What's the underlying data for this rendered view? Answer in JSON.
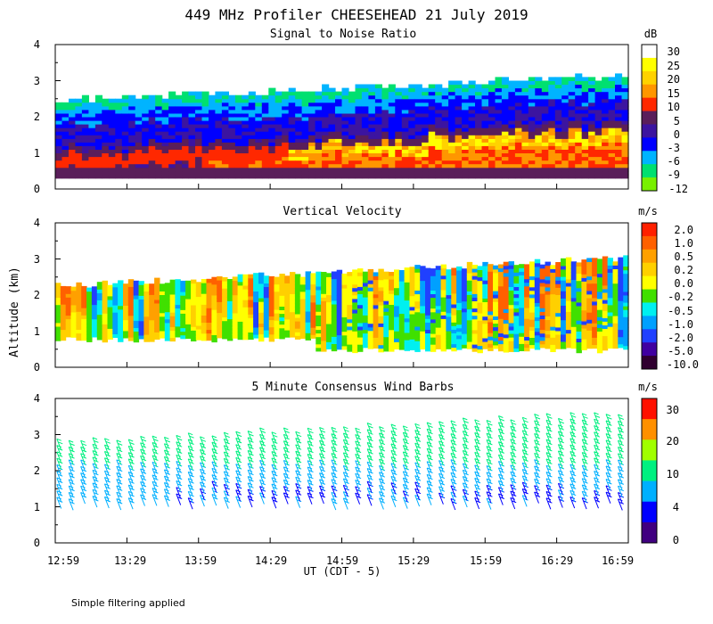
{
  "chart_data": {
    "type": "heatmap",
    "title": "449 MHz Profiler CHEESEHEAD 21 July 2019",
    "ylabel": "Altitude (km)",
    "xlabel": "UT  (CDT - 5)",
    "x_ticks": [
      "12:59",
      "13:29",
      "13:59",
      "14:29",
      "14:59",
      "15:29",
      "15:59",
      "16:29",
      "16:59"
    ],
    "xlim_hours": [
      12.9833,
      16.9833
    ],
    "ylim_km": [
      0,
      4
    ],
    "y_ticks": [
      "0",
      "1",
      "2",
      "3",
      "4"
    ],
    "footnote": "Simple filtering applied",
    "panels": [
      {
        "title": "Signal to Noise Ratio",
        "unit": "dB",
        "colorbar_labels": [
          "30",
          "25",
          "20",
          "15",
          "10",
          "5",
          "0",
          "-3",
          "-6",
          "-9",
          "-12"
        ],
        "colors": [
          "#ffffff",
          "#ffff00",
          "#ffd200",
          "#ff9600",
          "#ff2800",
          "#5a1e5a",
          "#3c14a0",
          "#0000ff",
          "#00b4ff",
          "#00e070",
          "#78f000"
        ],
        "data_range_km": {
          "bottom": 0.3,
          "top_start": 2.4,
          "top_end": 3.1
        }
      },
      {
        "title": "Vertical Velocity",
        "unit": "m/s",
        "colorbar_labels": [
          "2.0",
          "1.0",
          "0.5",
          "0.2",
          "0.0",
          "-0.2",
          "-0.5",
          "-1.0",
          "-2.0",
          "-5.0",
          "-10.0"
        ],
        "colors": [
          "#ff2000",
          "#ff6000",
          "#ffa000",
          "#ffd000",
          "#ffff00",
          "#40e000",
          "#00f0f0",
          "#00a0ff",
          "#2040ff",
          "#4000a0",
          "#300030"
        ],
        "data_range_km": {
          "bottom": 0.4,
          "top_start": 2.2,
          "top_end": 3.0
        }
      },
      {
        "title": "5 Minute Consensus Wind Barbs",
        "unit": "m/s",
        "colorbar_labels": [
          "30",
          "20",
          "10",
          "4",
          "0"
        ],
        "colors": [
          "#ff1000",
          "#ff9000",
          "#a0ff00",
          "#00f080",
          "#00b0ff",
          "#0000ff",
          "#400080"
        ],
        "data_range_km": {
          "bottom": 0.9,
          "top_start": 2.6,
          "top_end": 3.4
        }
      }
    ]
  }
}
